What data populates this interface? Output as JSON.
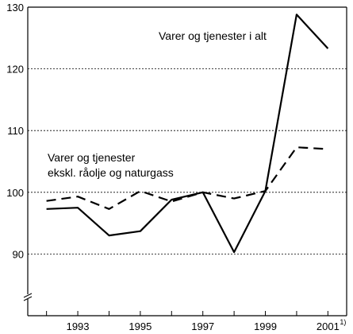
{
  "chart_data": {
    "type": "line",
    "x": [
      1992,
      1993,
      1994,
      1995,
      1996,
      1997,
      1998,
      1999,
      2000,
      2001
    ],
    "x_tick_labels": [
      "1993",
      "1995",
      "1997",
      "1999",
      "2001"
    ],
    "x_tick_values": [
      1993,
      1995,
      1997,
      1999,
      2001
    ],
    "x_footnote": "1)",
    "xlim": [
      1991.4,
      2001.6
    ],
    "ylim": [
      80,
      130
    ],
    "y_ticks": [
      90,
      100,
      110,
      120,
      130
    ],
    "y_axis_break": true,
    "grid": "horizontal dotted",
    "series": [
      {
        "name": "Varer og tjenester i alt",
        "style": "solid",
        "color": "#000000",
        "values": [
          97.3,
          97.5,
          93.0,
          93.7,
          98.8,
          100.0,
          90.3,
          100.2,
          128.8,
          123.3
        ]
      },
      {
        "name": "Varer og tjenester ekskl. råolje og naturgass",
        "label_lines": [
          "Varer og tjenester",
          "ekskl. råolje og naturgass"
        ],
        "style": "dashed",
        "color": "#000000",
        "values": [
          98.6,
          99.3,
          97.3,
          100.2,
          98.5,
          100.0,
          99.0,
          100.2,
          107.3,
          107.0
        ]
      }
    ]
  }
}
